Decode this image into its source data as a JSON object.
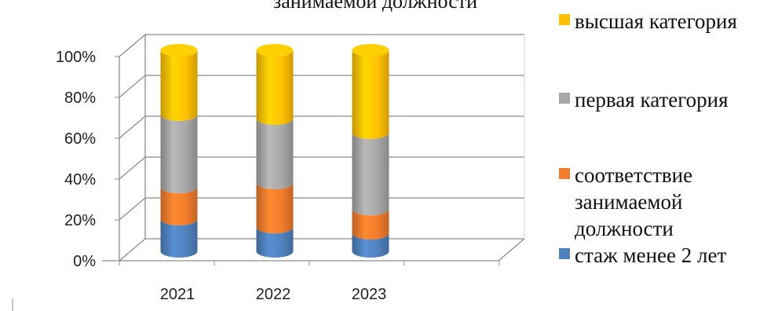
{
  "chart_data": {
    "type": "bar",
    "stacked": true,
    "percent": true,
    "title": "занимаемой должности",
    "categories": [
      "2021",
      "2022",
      "2023"
    ],
    "y_ticks": [
      "0%",
      "20%",
      "40%",
      "60%",
      "80%",
      "100%"
    ],
    "ylim": [
      0,
      100
    ],
    "grid": true,
    "legend_position": "right",
    "series": [
      {
        "name": "стаж менее 2 лет",
        "color": "#4F81BD",
        "values": [
          16,
          12,
          9
        ]
      },
      {
        "name": "соответствие занимаемой должности",
        "color": "#F07B2B",
        "values": [
          16,
          22,
          12
        ]
      },
      {
        "name": "первая категория",
        "color": "#A6A6A6",
        "values": [
          36,
          32,
          38
        ]
      },
      {
        "name": "высшая категория",
        "color": "#FFC000",
        "values": [
          32,
          34,
          41
        ]
      }
    ]
  },
  "legend": [
    {
      "label": "высшая категория",
      "color": "#FFC000"
    },
    {
      "label": "первая категория",
      "color": "#A6A6A6"
    },
    {
      "label": "соответствие\nзанимаемой\nдолжности",
      "color": "#F07B2B"
    },
    {
      "label": "стаж менее 2 лет",
      "color": "#4F81BD"
    }
  ]
}
